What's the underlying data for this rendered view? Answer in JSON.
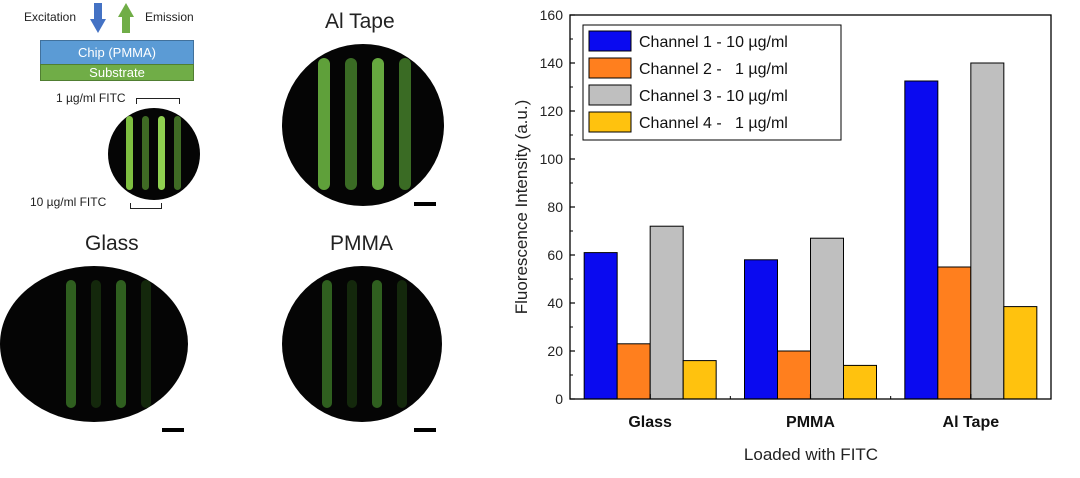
{
  "schematic": {
    "excitation": "Excitation",
    "emission": "Emission",
    "chip": "Chip (PMMA)",
    "substrate": "Substrate",
    "label_1ug": "1 µg/ml FITC",
    "label_10ug": "10 µg/ml FITC"
  },
  "images": {
    "al_tape": "Al Tape",
    "glass": "Glass",
    "pmma": "PMMA"
  },
  "colors": {
    "channel1": "#0a0af0",
    "channel2": "#ff7f1e",
    "channel3": "#bfbfbf",
    "channel4": "#ffc20e",
    "excitation_arrow": "#4472c4",
    "emission_arrow": "#70ad47",
    "chip_layer": "#5b9bd5",
    "substrate_layer": "#70ad47"
  },
  "chart_data": {
    "type": "bar",
    "categories": [
      "Glass",
      "PMMA",
      "Al Tape"
    ],
    "series": [
      {
        "name": "Channel 1 - 10 µg/ml",
        "values": [
          61,
          58,
          132.5
        ]
      },
      {
        "name": "Channel 2 -   1 µg/ml",
        "values": [
          23,
          20,
          55
        ]
      },
      {
        "name": "Channel 3 - 10 µg/ml",
        "values": [
          72,
          67,
          140
        ]
      },
      {
        "name": "Channel 4 -   1 µg/ml",
        "values": [
          16,
          14,
          38.5
        ]
      }
    ],
    "xlabel": "Loaded with FITC",
    "ylabel": "Fluorescence Intensity (a.u.)",
    "ylim": [
      0,
      160
    ],
    "yticks": [
      0,
      20,
      40,
      60,
      80,
      100,
      120,
      140,
      160
    ],
    "legend": "top-left"
  }
}
